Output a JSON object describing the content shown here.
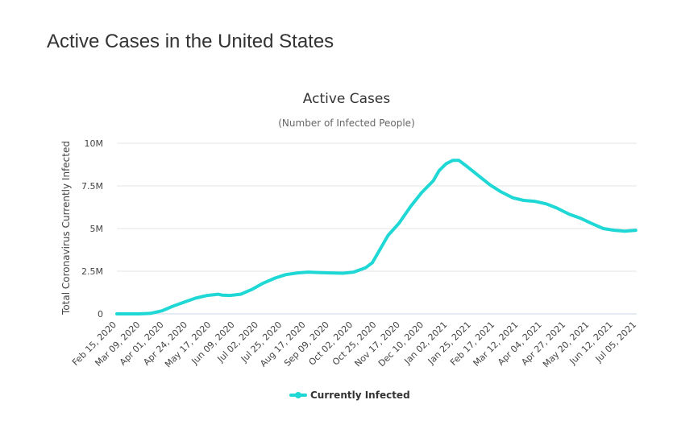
{
  "page": {
    "heading": "Active Cases in the United States"
  },
  "colors": {
    "series": "#1fd8d5",
    "grid": "#e6e6e6",
    "axis": "#ccd6eb"
  },
  "chart_data": {
    "type": "line",
    "title": "Active Cases",
    "subtitle": "(Number of Infected People)",
    "xlabel": "",
    "ylabel": "Total Coronavirus Currently Infected",
    "ylim": [
      0,
      10000000
    ],
    "yticks": [
      {
        "value": 0,
        "label": "0"
      },
      {
        "value": 2500000,
        "label": "2.5M"
      },
      {
        "value": 5000000,
        "label": "5M"
      },
      {
        "value": 7500000,
        "label": "7.5M"
      },
      {
        "value": 10000000,
        "label": "10M"
      }
    ],
    "xlim": [
      "2020-02-15",
      "2021-07-28"
    ],
    "xticks": [
      "Feb 15, 2020",
      "Mar 09, 2020",
      "Apr 01, 2020",
      "Apr 24, 2020",
      "May 17, 2020",
      "Jun 09, 2020",
      "Jul 02, 2020",
      "Jul 25, 2020",
      "Aug 17, 2020",
      "Sep 09, 2020",
      "Oct 02, 2020",
      "Oct 25, 2020",
      "Nov 17, 2020",
      "Dec 10, 2020",
      "Jan 02, 2021",
      "Jan 25, 2021",
      "Feb 17, 2021",
      "Mar 12, 2021",
      "Apr 04, 2021",
      "Apr 27, 2021",
      "May 20, 2021",
      "Jun 12, 2021",
      "Jul 05, 2021"
    ],
    "grid": true,
    "legend_position": "bottom-center",
    "series": [
      {
        "name": "Currently Infected",
        "color": "#1fd8d5",
        "points": [
          [
            "2020-02-15",
            0
          ],
          [
            "2020-03-09",
            0
          ],
          [
            "2020-03-20",
            30000
          ],
          [
            "2020-04-01",
            180000
          ],
          [
            "2020-04-12",
            450000
          ],
          [
            "2020-04-24",
            700000
          ],
          [
            "2020-05-05",
            920000
          ],
          [
            "2020-05-17",
            1080000
          ],
          [
            "2020-05-28",
            1150000
          ],
          [
            "2020-06-01",
            1100000
          ],
          [
            "2020-06-09",
            1080000
          ],
          [
            "2020-06-20",
            1150000
          ],
          [
            "2020-07-02",
            1450000
          ],
          [
            "2020-07-13",
            1800000
          ],
          [
            "2020-07-25",
            2100000
          ],
          [
            "2020-08-05",
            2300000
          ],
          [
            "2020-08-17",
            2400000
          ],
          [
            "2020-08-28",
            2450000
          ],
          [
            "2020-09-09",
            2420000
          ],
          [
            "2020-09-20",
            2400000
          ],
          [
            "2020-10-02",
            2380000
          ],
          [
            "2020-10-13",
            2450000
          ],
          [
            "2020-10-25",
            2700000
          ],
          [
            "2020-11-01",
            3000000
          ],
          [
            "2020-11-08",
            3700000
          ],
          [
            "2020-11-17",
            4600000
          ],
          [
            "2020-11-28",
            5300000
          ],
          [
            "2020-12-10",
            6300000
          ],
          [
            "2020-12-21",
            7100000
          ],
          [
            "2021-01-02",
            7800000
          ],
          [
            "2021-01-08",
            8400000
          ],
          [
            "2021-01-15",
            8800000
          ],
          [
            "2021-01-22",
            9000000
          ],
          [
            "2021-01-28",
            9000000
          ],
          [
            "2021-02-04",
            8700000
          ],
          [
            "2021-02-17",
            8100000
          ],
          [
            "2021-03-01",
            7550000
          ],
          [
            "2021-03-12",
            7150000
          ],
          [
            "2021-03-24",
            6800000
          ],
          [
            "2021-04-04",
            6650000
          ],
          [
            "2021-04-15",
            6600000
          ],
          [
            "2021-04-27",
            6450000
          ],
          [
            "2021-05-08",
            6200000
          ],
          [
            "2021-05-20",
            5850000
          ],
          [
            "2021-06-01",
            5600000
          ],
          [
            "2021-06-12",
            5300000
          ],
          [
            "2021-06-24",
            5000000
          ],
          [
            "2021-07-05",
            4900000
          ],
          [
            "2021-07-16",
            4850000
          ],
          [
            "2021-07-27",
            4900000
          ]
        ]
      }
    ]
  }
}
